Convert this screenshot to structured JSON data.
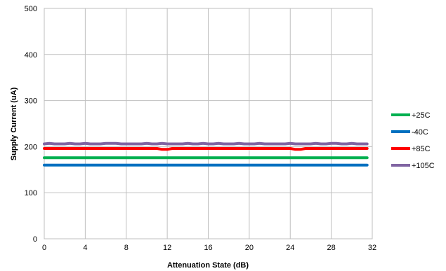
{
  "chart_data": {
    "type": "line",
    "title": "",
    "xlabel": "Attenuation State (dB)",
    "ylabel": "Supply Current (uA)",
    "xlim": [
      0,
      32
    ],
    "ylim": [
      0,
      500
    ],
    "xticks": [
      0,
      4,
      8,
      12,
      16,
      20,
      24,
      28,
      32
    ],
    "yticks": [
      0,
      100,
      200,
      300,
      400,
      500
    ],
    "grid": true,
    "legend_position": "right",
    "x": [
      0,
      0.5,
      1,
      1.5,
      2,
      2.5,
      3,
      3.5,
      4,
      4.5,
      5,
      5.5,
      6,
      6.5,
      7,
      7.5,
      8,
      8.5,
      9,
      9.5,
      10,
      10.5,
      11,
      11.5,
      12,
      12.5,
      13,
      13.5,
      14,
      14.5,
      15,
      15.5,
      16,
      16.5,
      17,
      17.5,
      18,
      18.5,
      19,
      19.5,
      20,
      20.5,
      21,
      21.5,
      22,
      22.5,
      23,
      23.5,
      24,
      24.5,
      25,
      25.5,
      26,
      26.5,
      27,
      27.5,
      28,
      28.5,
      29,
      29.5,
      30,
      30.5,
      31,
      31.5
    ],
    "series": [
      {
        "name": "+25C",
        "color": "#00b050",
        "values": [
          176,
          176,
          176,
          176,
          176,
          176,
          176,
          176,
          176,
          176,
          176,
          176,
          176,
          176,
          176,
          176,
          176,
          176,
          176,
          176,
          176,
          176,
          176,
          176,
          176,
          176,
          176,
          176,
          176,
          176,
          176,
          176,
          176,
          176,
          176,
          176,
          176,
          176,
          176,
          176,
          176,
          176,
          176,
          176,
          176,
          176,
          176,
          176,
          176,
          176,
          176,
          176,
          176,
          176,
          176,
          176,
          176,
          176,
          176,
          176,
          176,
          176,
          176,
          176
        ]
      },
      {
        "name": "-40C",
        "color": "#0070c0",
        "values": [
          160,
          160,
          160,
          160,
          160,
          160,
          160,
          160,
          160,
          160,
          160,
          160,
          160,
          160,
          160,
          160,
          160,
          160,
          160,
          160,
          160,
          160,
          160,
          160,
          160,
          160,
          160,
          160,
          160,
          160,
          160,
          160,
          160,
          160,
          160,
          160,
          160,
          160,
          160,
          160,
          160,
          160,
          160,
          160,
          160,
          160,
          160,
          160,
          160,
          160,
          160,
          160,
          160,
          160,
          160,
          160,
          160,
          160,
          160,
          160,
          160,
          160,
          160,
          160
        ]
      },
      {
        "name": "+85C",
        "color": "#ff0000",
        "values": [
          196,
          196,
          196,
          196,
          196,
          196,
          196,
          196,
          196,
          196,
          196,
          196,
          196,
          196,
          196,
          196,
          196,
          196,
          196,
          196,
          196,
          196,
          196,
          194,
          194,
          196,
          196,
          196,
          196,
          196,
          196,
          196,
          196,
          196,
          196,
          196,
          196,
          196,
          196,
          196,
          196,
          196,
          196,
          196,
          196,
          196,
          196,
          196,
          196,
          194,
          194,
          196,
          196,
          196,
          196,
          196,
          196,
          196,
          196,
          196,
          196,
          196,
          196,
          196
        ]
      },
      {
        "name": "+105C",
        "color": "#8064a2",
        "values": [
          206,
          207,
          206,
          206,
          206,
          207,
          206,
          206,
          207,
          206,
          206,
          206,
          207,
          207,
          207,
          206,
          206,
          206,
          206,
          206,
          207,
          206,
          206,
          207,
          206,
          206,
          206,
          206,
          207,
          206,
          206,
          207,
          206,
          206,
          207,
          206,
          206,
          206,
          207,
          206,
          206,
          206,
          207,
          206,
          206,
          206,
          206,
          206,
          207,
          206,
          206,
          206,
          206,
          207,
          206,
          206,
          207,
          207,
          206,
          206,
          207,
          206,
          206,
          206
        ]
      }
    ]
  }
}
